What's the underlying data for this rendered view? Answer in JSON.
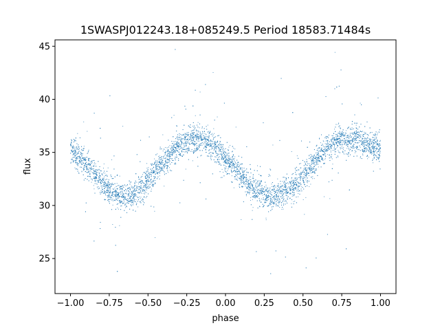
{
  "chart_data": {
    "type": "scatter",
    "title": "1SWASPJ012243.18+085249.5 Period 18583.71484s",
    "xlabel": "phase",
    "ylabel": "flux",
    "xlim": [
      -1.1,
      1.1
    ],
    "ylim": [
      21.7,
      45.6
    ],
    "x_ticks": [
      -1.0,
      -0.75,
      -0.5,
      -0.25,
      0.0,
      0.25,
      0.5,
      0.75,
      1.0
    ],
    "x_tick_labels": [
      "−1.00",
      "−0.75",
      "−0.50",
      "−0.25",
      "0.00",
      "0.25",
      "0.50",
      "0.75",
      "1.00"
    ],
    "y_ticks": [
      25,
      30,
      35,
      40,
      45
    ],
    "y_tick_labels": [
      "25",
      "30",
      "35",
      "40",
      "45"
    ],
    "grid": false,
    "legend": "none",
    "marker_color": "#1f77b4",
    "series": [
      {
        "x": [
          -1.0,
          -0.95,
          -0.9,
          -0.85,
          -0.8,
          -0.75,
          -0.7,
          -0.65,
          -0.6,
          -0.55,
          -0.5,
          -0.45,
          -0.4,
          -0.35,
          -0.3,
          -0.25,
          -0.2,
          -0.15,
          -0.1,
          -0.05,
          0.0,
          0.05,
          0.1,
          0.15,
          0.2,
          0.25,
          0.3,
          0.35,
          0.4,
          0.45,
          0.5,
          0.55,
          0.6,
          0.65,
          0.7,
          0.75,
          0.8,
          0.85,
          0.9,
          0.95,
          1.0
        ],
        "y": [
          35.3,
          34.6,
          33.9,
          33.0,
          32.2,
          31.5,
          31.0,
          30.9,
          31.1,
          31.6,
          32.3,
          33.2,
          34.1,
          34.9,
          35.6,
          36.1,
          36.3,
          36.2,
          35.8,
          35.2,
          34.5,
          33.7,
          32.8,
          32.0,
          31.4,
          31.0,
          30.9,
          31.0,
          31.4,
          32.0,
          32.8,
          33.7,
          34.6,
          35.3,
          35.9,
          36.2,
          36.3,
          36.1,
          35.8,
          35.5,
          35.3
        ]
      }
    ]
  }
}
